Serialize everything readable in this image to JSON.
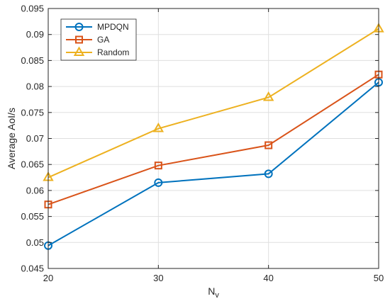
{
  "chart_data": {
    "type": "line",
    "x": [
      20,
      30,
      40,
      50
    ],
    "xlim": [
      20,
      50
    ],
    "ylim": [
      0.045,
      0.095
    ],
    "xticks": [
      "20",
      "30",
      "40",
      "50"
    ],
    "yticks": [
      "0.045",
      "0.05",
      "0.055",
      "0.06",
      "0.065",
      "0.07",
      "0.075",
      "0.08",
      "0.085",
      "0.09",
      "0.095"
    ],
    "xlabel_main": "N",
    "xlabel_sub": "v",
    "ylabel": "Average AoI/s",
    "grid": true,
    "legend_position": "top-left",
    "series": [
      {
        "name": "MPDQN",
        "values": [
          0.0494,
          0.0615,
          0.0632,
          0.0808
        ],
        "color": "#0072BD",
        "marker": "circle"
      },
      {
        "name": "GA",
        "values": [
          0.0573,
          0.0648,
          0.0687,
          0.0823
        ],
        "color": "#D95319",
        "marker": "square"
      },
      {
        "name": "Random",
        "values": [
          0.0625,
          0.0719,
          0.0779,
          0.0911
        ],
        "color": "#EDB120",
        "marker": "triangle"
      }
    ]
  }
}
